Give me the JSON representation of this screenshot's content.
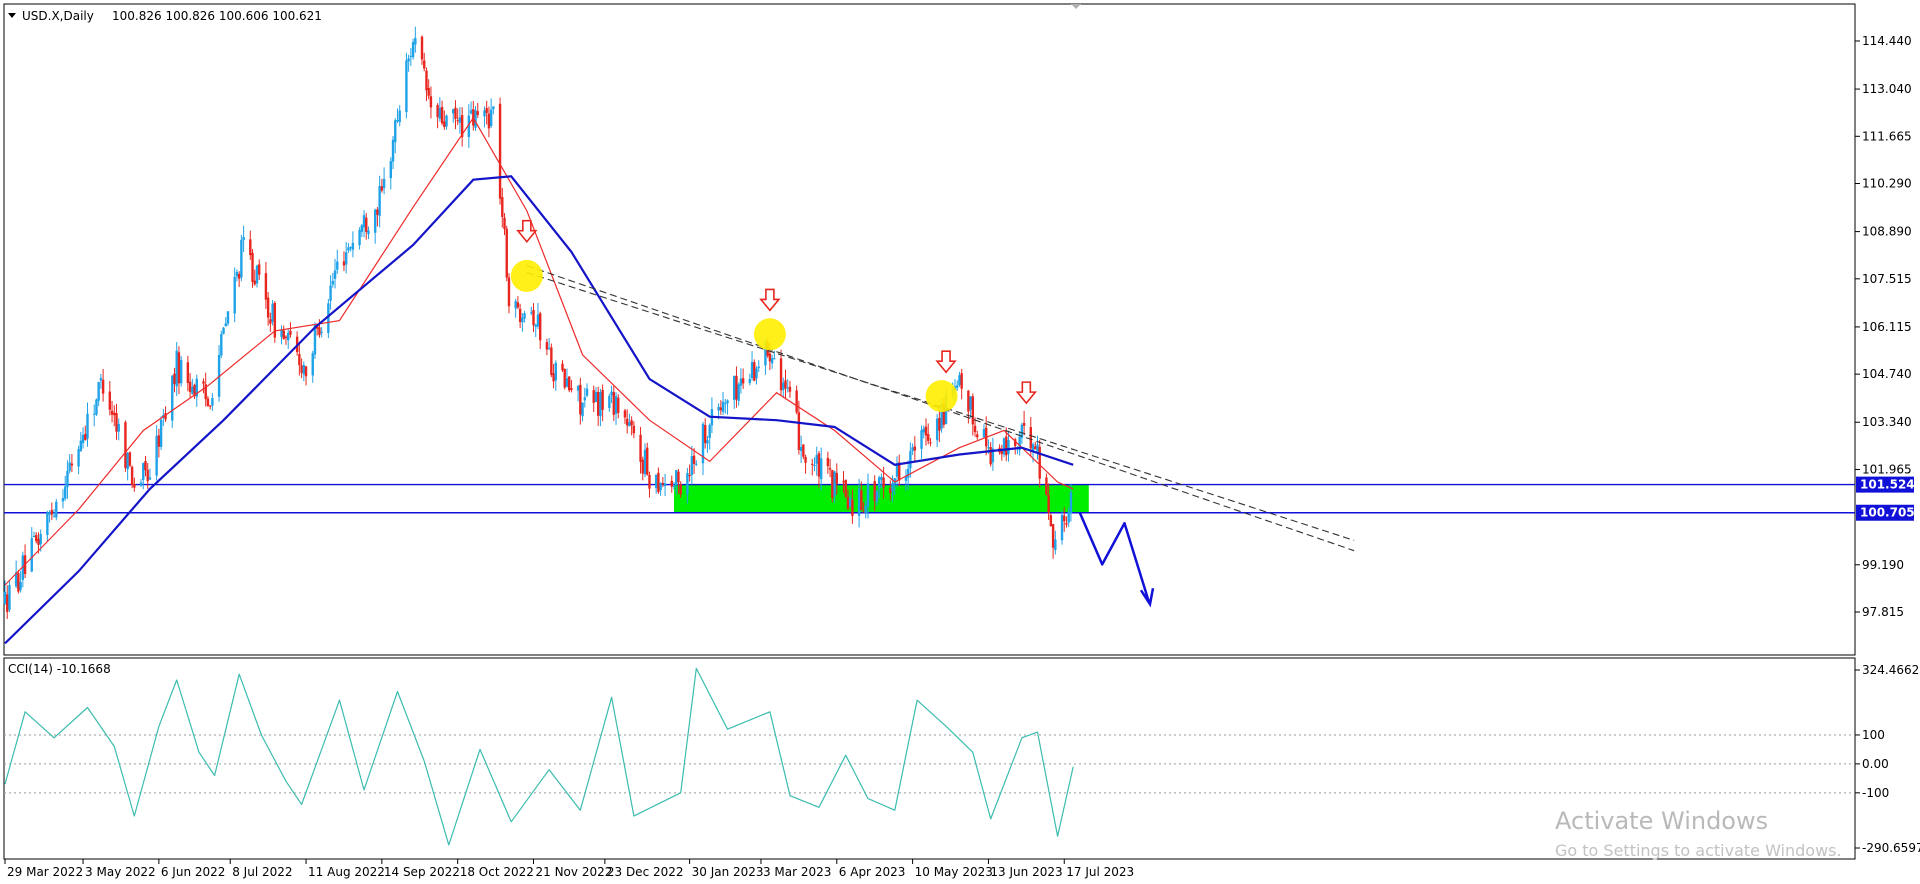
{
  "symbol_info": {
    "menu_icon": "triangle-down-icon",
    "symbol": "USD.X,Daily",
    "ohlc": "100.826 100.826 100.606 100.621"
  },
  "indicator_info": {
    "label": "CCI(14) -10.1668"
  },
  "watermark": {
    "title": "Activate Windows",
    "subtitle": "Go to Settings to activate Windows."
  },
  "colors": {
    "bull_candle": "#1fa2e8",
    "bear_candle": "#e8261f",
    "ma_fast": "#ee2a2a",
    "ma_slow": "#1414c8",
    "support_zone": "#00ee00",
    "level_line": "#1010d8",
    "cci_line": "#3bbcaf",
    "highlight": "#ffee00",
    "arrow": "#e8261f",
    "forecast": "#1010d8"
  },
  "chart_data": [
    {
      "type": "candlestick",
      "title": "",
      "y_ticks": [
        "114.440",
        "113.040",
        "111.665",
        "110.290",
        "108.890",
        "107.515",
        "106.115",
        "104.740",
        "103.340",
        "101.965",
        "99.190",
        "97.815"
      ],
      "x_ticks": [
        "29 Mar 2022",
        "3 May 2022",
        "6 Jun 2022",
        "8 Jul 2022",
        "11 Aug 2022",
        "14 Sep 2022",
        "18 Oct 2022",
        "21 Nov 2022",
        "23 Dec 2022",
        "30 Jan 2023",
        "3 Mar 2023",
        "6 Apr 2023",
        "10 May 2023",
        "13 Jun 2023",
        "17 Jul 2023"
      ],
      "ylim": [
        97.0,
        115.4
      ],
      "price_path": [
        {
          "date": "2022-03-29",
          "value": 98.1
        },
        {
          "date": "2022-04-12",
          "value": 99.8
        },
        {
          "date": "2022-04-26",
          "value": 101.8
        },
        {
          "date": "2022-05-12",
          "value": 104.6
        },
        {
          "date": "2022-05-26",
          "value": 101.6
        },
        {
          "date": "2022-06-02",
          "value": 101.9
        },
        {
          "date": "2022-06-14",
          "value": 105.0
        },
        {
          "date": "2022-06-28",
          "value": 103.9
        },
        {
          "date": "2022-07-14",
          "value": 108.5
        },
        {
          "date": "2022-07-28",
          "value": 106.2
        },
        {
          "date": "2022-08-11",
          "value": 104.9
        },
        {
          "date": "2022-08-26",
          "value": 108.1
        },
        {
          "date": "2022-09-14",
          "value": 109.9
        },
        {
          "date": "2022-09-28",
          "value": 114.6
        },
        {
          "date": "2022-10-07",
          "value": 112.2
        },
        {
          "date": "2022-10-21",
          "value": 112.0
        },
        {
          "date": "2022-11-03",
          "value": 112.4
        },
        {
          "date": "2022-11-11",
          "value": 106.3
        },
        {
          "date": "2022-11-18",
          "value": 107.0
        },
        {
          "date": "2022-12-01",
          "value": 104.8
        },
        {
          "date": "2022-12-13",
          "value": 103.9
        },
        {
          "date": "2022-12-28",
          "value": 104.0
        },
        {
          "date": "2023-01-12",
          "value": 101.8
        },
        {
          "date": "2023-01-26",
          "value": 101.5
        },
        {
          "date": "2023-02-08",
          "value": 103.4
        },
        {
          "date": "2023-03-08",
          "value": 105.6
        },
        {
          "date": "2023-03-23",
          "value": 102.3
        },
        {
          "date": "2023-04-13",
          "value": 101.0
        },
        {
          "date": "2023-04-28",
          "value": 101.5
        },
        {
          "date": "2023-05-11",
          "value": 102.5
        },
        {
          "date": "2023-05-31",
          "value": 104.3
        },
        {
          "date": "2023-06-15",
          "value": 102.4
        },
        {
          "date": "2023-07-03",
          "value": 103.0
        },
        {
          "date": "2023-07-13",
          "value": 99.8
        },
        {
          "date": "2023-07-21",
          "value": 101.2
        }
      ],
      "series": [
        {
          "name": "",
          "kind": "moving-average-fast",
          "points": [
            {
              "date": "2022-03-29",
              "value": 98.6
            },
            {
              "date": "2022-05-01",
              "value": 100.8
            },
            {
              "date": "2022-05-30",
              "value": 103.1
            },
            {
              "date": "2022-06-28",
              "value": 104.4
            },
            {
              "date": "2022-07-28",
              "value": 106.0
            },
            {
              "date": "2022-08-26",
              "value": 106.3
            },
            {
              "date": "2022-09-28",
              "value": 109.6
            },
            {
              "date": "2022-10-25",
              "value": 112.2
            },
            {
              "date": "2022-11-18",
              "value": 109.5
            },
            {
              "date": "2022-12-13",
              "value": 105.3
            },
            {
              "date": "2023-01-12",
              "value": 103.4
            },
            {
              "date": "2023-02-08",
              "value": 102.2
            },
            {
              "date": "2023-03-10",
              "value": 104.2
            },
            {
              "date": "2023-04-05",
              "value": 103.1
            },
            {
              "date": "2023-05-02",
              "value": 101.6
            },
            {
              "date": "2023-05-31",
              "value": 102.6
            },
            {
              "date": "2023-06-20",
              "value": 103.1
            },
            {
              "date": "2023-07-14",
              "value": 101.6
            },
            {
              "date": "2023-07-21",
              "value": 101.4
            }
          ]
        },
        {
          "name": "",
          "kind": "moving-average-slow",
          "points": [
            {
              "date": "2022-03-29",
              "value": 96.9
            },
            {
              "date": "2022-05-01",
              "value": 99.0
            },
            {
              "date": "2022-06-02",
              "value": 101.4
            },
            {
              "date": "2022-07-05",
              "value": 103.4
            },
            {
              "date": "2022-08-15",
              "value": 106.1
            },
            {
              "date": "2022-09-28",
              "value": 108.5
            },
            {
              "date": "2022-10-25",
              "value": 110.4
            },
            {
              "date": "2022-11-11",
              "value": 110.5
            },
            {
              "date": "2022-12-08",
              "value": 108.3
            },
            {
              "date": "2023-01-12",
              "value": 104.6
            },
            {
              "date": "2023-02-08",
              "value": 103.5
            },
            {
              "date": "2023-03-10",
              "value": 103.4
            },
            {
              "date": "2023-04-05",
              "value": 103.2
            },
            {
              "date": "2023-05-02",
              "value": 102.1
            },
            {
              "date": "2023-05-31",
              "value": 102.4
            },
            {
              "date": "2023-06-28",
              "value": 102.6
            },
            {
              "date": "2023-07-21",
              "value": 102.1
            }
          ]
        }
      ],
      "levels": [
        {
          "label": "101.524",
          "value": 101.524
        },
        {
          "label": "100.705",
          "value": 100.705
        }
      ],
      "support_zone": {
        "from": "2023-01-23",
        "to": "2023-07-28",
        "low": 100.705,
        "high": 101.524
      },
      "trendlines": [
        {
          "from": {
            "date": "2022-11-18",
            "value": 107.9
          },
          "to": {
            "date": "2023-11-24",
            "value": 99.6
          }
        },
        {
          "from": {
            "date": "2022-11-18",
            "value": 107.7
          },
          "to": {
            "date": "2023-11-24",
            "value": 99.9
          }
        }
      ],
      "touch_points": [
        {
          "date": "2022-11-18",
          "value": 107.6
        },
        {
          "date": "2023-03-07",
          "value": 105.9
        },
        {
          "date": "2023-05-23",
          "value": 104.1
        }
      ],
      "arrows": [
        {
          "date": "2022-11-18",
          "value": 108.8
        },
        {
          "date": "2023-03-07",
          "value": 106.8
        },
        {
          "date": "2023-05-25",
          "value": 105.0
        },
        {
          "date": "2023-06-30",
          "value": 104.1
        }
      ],
      "forecast_path": [
        {
          "date": "2023-07-24",
          "value": 100.7
        },
        {
          "date": "2023-08-03",
          "value": 99.2
        },
        {
          "date": "2023-08-13",
          "value": 100.4
        },
        {
          "date": "2023-08-24",
          "value": 98.1
        }
      ]
    },
    {
      "type": "line",
      "title": "",
      "y_ticks": [
        "324.4662",
        "100",
        "0.00",
        "-100",
        "-290.6597"
      ],
      "ylim": [
        -290.6597,
        324.4662
      ],
      "guide_levels": [
        100,
        0,
        -100
      ],
      "series": [
        {
          "name": "",
          "points": [
            {
              "date": "2022-03-29",
              "value": -70
            },
            {
              "date": "2022-04-07",
              "value": 180
            },
            {
              "date": "2022-04-20",
              "value": 90
            },
            {
              "date": "2022-05-05",
              "value": 195
            },
            {
              "date": "2022-05-17",
              "value": 60
            },
            {
              "date": "2022-05-26",
              "value": -180
            },
            {
              "date": "2022-06-06",
              "value": 130
            },
            {
              "date": "2022-06-14",
              "value": 290
            },
            {
              "date": "2022-06-24",
              "value": 40
            },
            {
              "date": "2022-07-01",
              "value": -40
            },
            {
              "date": "2022-07-12",
              "value": 310
            },
            {
              "date": "2022-07-22",
              "value": 100
            },
            {
              "date": "2022-08-02",
              "value": -60
            },
            {
              "date": "2022-08-09",
              "value": -140
            },
            {
              "date": "2022-08-26",
              "value": 220
            },
            {
              "date": "2022-09-06",
              "value": -90
            },
            {
              "date": "2022-09-21",
              "value": 250
            },
            {
              "date": "2022-10-03",
              "value": 10
            },
            {
              "date": "2022-10-14",
              "value": -280
            },
            {
              "date": "2022-10-28",
              "value": 50
            },
            {
              "date": "2022-11-11",
              "value": -200
            },
            {
              "date": "2022-11-28",
              "value": -20
            },
            {
              "date": "2022-12-12",
              "value": -160
            },
            {
              "date": "2022-12-26",
              "value": 230
            },
            {
              "date": "2023-01-05",
              "value": -180
            },
            {
              "date": "2023-01-26",
              "value": -100
            },
            {
              "date": "2023-02-02",
              "value": 330
            },
            {
              "date": "2023-02-16",
              "value": 120
            },
            {
              "date": "2023-03-07",
              "value": 180
            },
            {
              "date": "2023-03-16",
              "value": -110
            },
            {
              "date": "2023-03-29",
              "value": -150
            },
            {
              "date": "2023-04-10",
              "value": 30
            },
            {
              "date": "2023-04-20",
              "value": -120
            },
            {
              "date": "2023-05-02",
              "value": -160
            },
            {
              "date": "2023-05-12",
              "value": 220
            },
            {
              "date": "2023-05-25",
              "value": 130
            },
            {
              "date": "2023-06-06",
              "value": 40
            },
            {
              "date": "2023-06-14",
              "value": -190
            },
            {
              "date": "2023-06-28",
              "value": 90
            },
            {
              "date": "2023-07-05",
              "value": 110
            },
            {
              "date": "2023-07-14",
              "value": -250
            },
            {
              "date": "2023-07-21",
              "value": -10
            }
          ]
        }
      ]
    }
  ]
}
